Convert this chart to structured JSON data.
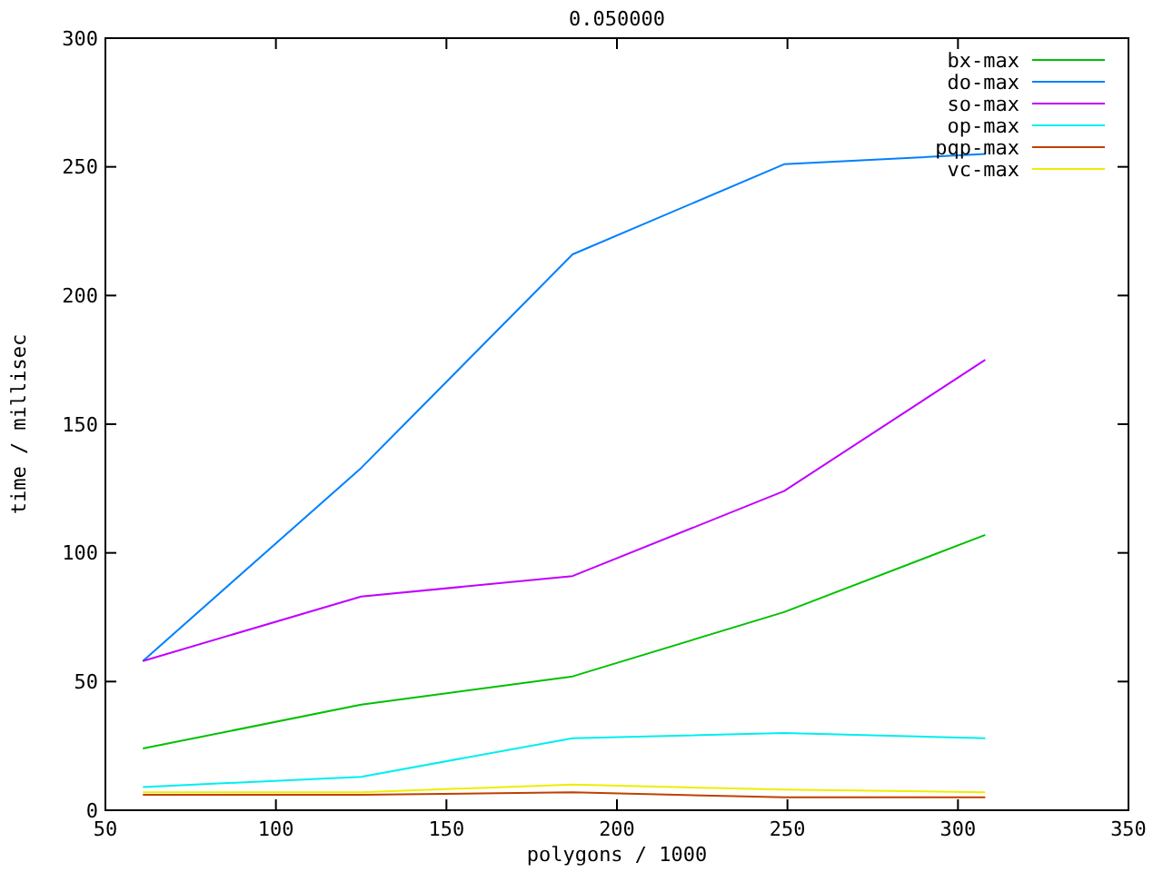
{
  "chart_data": {
    "type": "line",
    "title": "0.050000",
    "xlabel": "polygons / 1000",
    "ylabel": "time / millisec",
    "x": [
      61,
      125,
      187,
      249,
      308
    ],
    "xlim": [
      50,
      350
    ],
    "xticks": [
      50,
      100,
      150,
      200,
      250,
      300,
      350
    ],
    "ylim": [
      0,
      300
    ],
    "yticks": [
      0,
      50,
      100,
      150,
      200,
      250,
      300
    ],
    "grid": false,
    "legend": "top right",
    "marker": "none",
    "series": [
      {
        "name": "bx-max",
        "color": "#00c000",
        "values": [
          24,
          41,
          52,
          77,
          107
        ]
      },
      {
        "name": "do-max",
        "color": "#0080ff",
        "values": [
          58,
          133,
          216,
          251,
          255
        ]
      },
      {
        "name": "so-max",
        "color": "#c000ff",
        "values": [
          58,
          83,
          91,
          124,
          175
        ]
      },
      {
        "name": "op-max",
        "color": "#00eeee",
        "values": [
          9,
          13,
          28,
          30,
          28
        ]
      },
      {
        "name": "pqp-max",
        "color": "#c04000",
        "values": [
          6,
          6,
          7,
          5,
          5
        ]
      },
      {
        "name": "vc-max",
        "color": "#eeee00",
        "values": [
          7,
          7,
          10,
          8,
          7
        ]
      }
    ]
  }
}
